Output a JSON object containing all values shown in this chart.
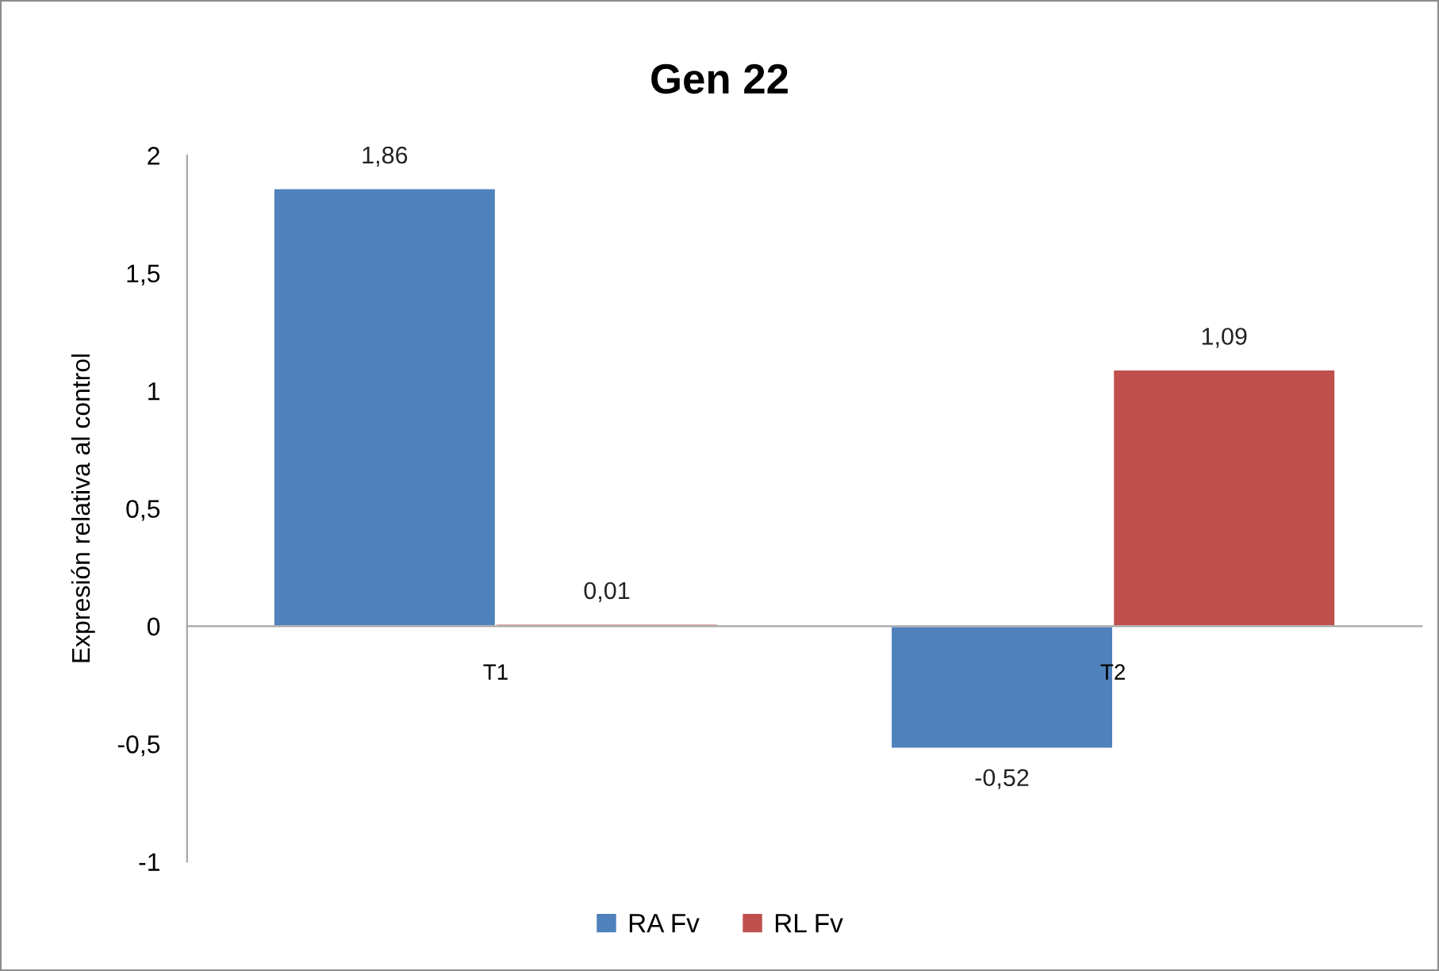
{
  "chart_data": {
    "type": "bar",
    "title": "Gen 22",
    "ylabel": "Expresión relativa al control",
    "categories": [
      "T1",
      "T2"
    ],
    "series": [
      {
        "name": "RA Fv",
        "color": "#4f81bd",
        "values": [
          1.86,
          -0.52
        ],
        "value_labels": [
          "1,86",
          "-0,52"
        ]
      },
      {
        "name": "RL Fv",
        "color": "#c0504d",
        "values": [
          0.01,
          1.09
        ],
        "value_labels": [
          "0,01",
          "1,09"
        ]
      }
    ],
    "ylim": [
      -1,
      2
    ],
    "yticks": [
      -1,
      {
        "value": -0.5,
        "label": "-0,5"
      },
      0,
      {
        "value": 0.5,
        "label": "0,5"
      },
      1,
      {
        "value": 1.5,
        "label": "1,5"
      },
      2
    ],
    "grid": false,
    "legend": "bottom"
  }
}
